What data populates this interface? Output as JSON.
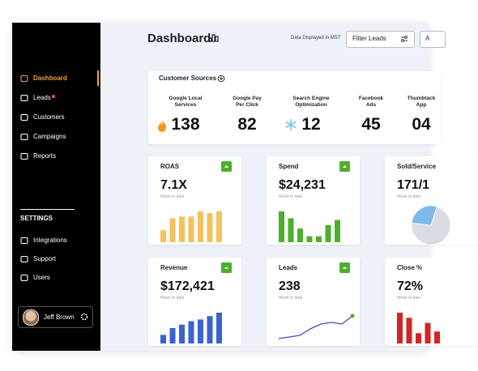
{
  "sidebar": {
    "nav": [
      "Dashboard",
      "Leads",
      "Customers",
      "Campaigns",
      "Reports"
    ],
    "settings_heading": "SETTINGS",
    "settings": [
      "Integrations",
      "Support",
      "Users"
    ],
    "user": "Jeff Brown"
  },
  "header": {
    "title": "Dashboard",
    "note": "Data Displayed in MST",
    "filter": "Filter Leads",
    "next_button": "A"
  },
  "customer_sources": {
    "title": "Customer Sources",
    "sources": [
      {
        "label": "Google Local Services",
        "value": "138"
      },
      {
        "label": "Google Pay Per Click",
        "value": "82"
      },
      {
        "label": "Search Engine Optimization",
        "value": "12"
      },
      {
        "label": "Facebook Ads",
        "value": "45"
      },
      {
        "label": "Thumbtack App",
        "value": "04"
      }
    ]
  },
  "cards": [
    {
      "title": "ROAS",
      "value": "7.1X",
      "subtitle": "Week to date",
      "chart": {
        "type": "bar",
        "color": "#f5c15c",
        "values": [
          14,
          28,
          30,
          30,
          36,
          34,
          36
        ]
      }
    },
    {
      "title": "Spend",
      "value": "$24,231",
      "subtitle": "Week to date",
      "chart": {
        "type": "bar",
        "color": "#4caf2a",
        "values": [
          36,
          28,
          16,
          7,
          7,
          20,
          26
        ]
      }
    },
    {
      "title": "Sold/Service",
      "value": "171/1",
      "subtitle": "Week to date",
      "chart": {
        "type": "pie",
        "colors": [
          "#d9dde3",
          "#7fb8ea"
        ],
        "values": [
          72,
          28
        ]
      }
    },
    {
      "title": "Revenue",
      "value": "$172,421",
      "subtitle": "Week to date",
      "chart": {
        "type": "bar",
        "color": "#3a62d0",
        "values": [
          10,
          18,
          22,
          26,
          28,
          32,
          36
        ]
      }
    },
    {
      "title": "Leads",
      "value": "238",
      "subtitle": "Week to date",
      "chart": {
        "type": "line",
        "color": "#3b4fc4",
        "values": [
          0,
          1,
          2,
          6,
          9,
          10,
          9,
          14
        ]
      }
    },
    {
      "title": "Close %",
      "value": "72%",
      "subtitle": "Week to date",
      "chart": {
        "type": "bar",
        "color": "#d42424",
        "values": [
          36,
          30,
          12,
          24,
          14
        ]
      }
    }
  ]
}
